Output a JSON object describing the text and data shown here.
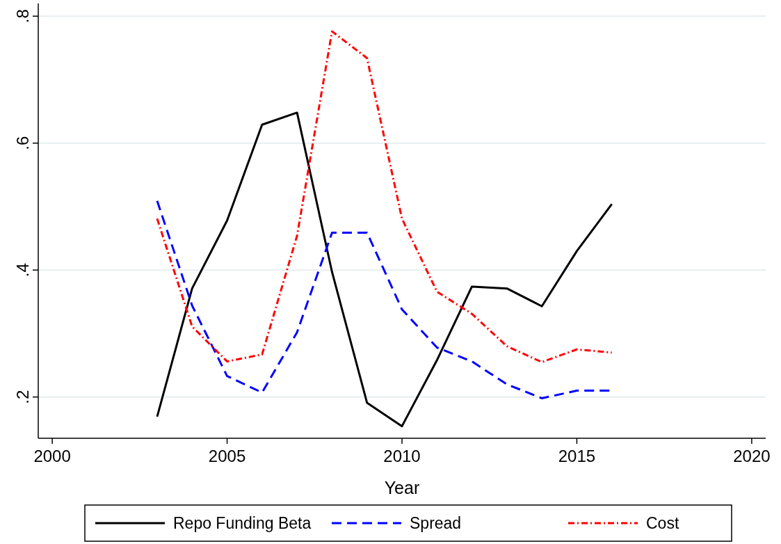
{
  "chart_data": {
    "type": "line",
    "xlabel": "Year",
    "x": [
      2003,
      2004,
      2005,
      2006,
      2007,
      2008,
      2009,
      2010,
      2011,
      2012,
      2013,
      2014,
      2015,
      2016
    ],
    "series": [
      {
        "name": "Repo Funding Beta",
        "color": "#000000",
        "line_style": "solid",
        "values": [
          0.169,
          0.371,
          0.478,
          0.629,
          0.648,
          0.397,
          0.191,
          0.154,
          0.258,
          0.374,
          0.371,
          0.343,
          0.43,
          0.504
        ]
      },
      {
        "name": "Spread",
        "color": "#0000ff",
        "line_style": "dashed",
        "values": [
          0.509,
          0.344,
          0.233,
          0.207,
          0.302,
          0.459,
          0.459,
          0.338,
          0.278,
          0.256,
          0.22,
          0.198,
          0.21,
          0.21
        ]
      },
      {
        "name": "Cost",
        "color": "#ff0000",
        "line_style": "dotted",
        "values": [
          0.481,
          0.311,
          0.256,
          0.267,
          0.454,
          0.776,
          0.734,
          0.481,
          0.366,
          0.331,
          0.28,
          0.255,
          0.275,
          0.27
        ]
      }
    ],
    "xlim": [
      1999.6,
      2020.4
    ],
    "xticks": [
      2000,
      2005,
      2010,
      2015,
      2020
    ],
    "ylim": [
      0.135,
      0.82
    ],
    "yticks": [
      {
        "value": 0.2,
        "label": ".2"
      },
      {
        "value": 0.4,
        "label": ".4"
      },
      {
        "value": 0.6,
        "label": ".6"
      },
      {
        "value": 0.8,
        "label": ".8"
      }
    ],
    "grid": "y",
    "legend": "bottom",
    "marker": "none"
  }
}
